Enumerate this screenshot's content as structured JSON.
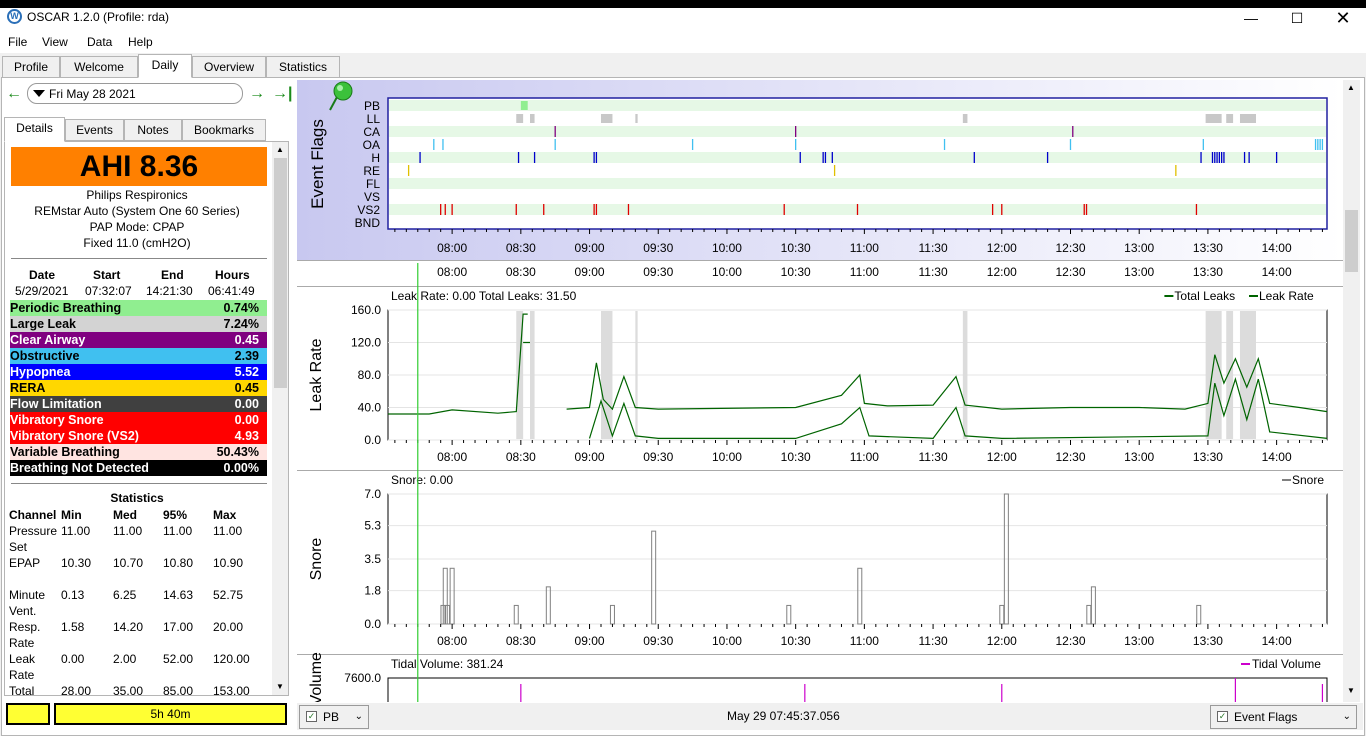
{
  "app": {
    "title": "OSCAR 1.2.0 (Profile: rda)",
    "icon": "oscar-logo-icon",
    "window_controls": [
      "minimize-icon",
      "maximize-icon",
      "close-icon"
    ]
  },
  "menu": [
    "File",
    "View",
    "Data",
    "Help"
  ],
  "main_tabs": [
    "Profile",
    "Welcome",
    "Daily",
    "Overview",
    "Statistics"
  ],
  "active_main_tab": "Daily",
  "nav": {
    "date": "Fri May 28 2021"
  },
  "side_tabs": [
    "Details",
    "Events",
    "Notes",
    "Bookmarks"
  ],
  "active_side_tab": "Details",
  "details": {
    "ahi": "AHI 8.36",
    "machine": [
      "Philips Respironics",
      "REMstar Auto (System One 60 Series)",
      "PAP Mode: CPAP",
      "Fixed 11.0 (cmH2O)"
    ],
    "session_headers": [
      "Date",
      "Start",
      "End",
      "Hours"
    ],
    "session_values": [
      "5/29/2021",
      "07:32:07",
      "14:21:30",
      "06:41:49"
    ],
    "events": [
      {
        "name": "Periodic Breathing",
        "value": "0.74%",
        "bg": "#90ee90",
        "fg": "#000000"
      },
      {
        "name": "Large Leak",
        "value": "7.24%",
        "bg": "#d3d3d3",
        "fg": "#000000"
      },
      {
        "name": "Clear Airway",
        "value": "0.45",
        "bg": "#800080",
        "fg": "#ffffff"
      },
      {
        "name": "Obstructive",
        "value": "2.39",
        "bg": "#40c0f0",
        "fg": "#000000"
      },
      {
        "name": "Hypopnea",
        "value": "5.52",
        "bg": "#0000ff",
        "fg": "#ffffff"
      },
      {
        "name": "RERA",
        "value": "0.45",
        "bg": "#ffd700",
        "fg": "#000000"
      },
      {
        "name": "Flow Limitation",
        "value": "0.00",
        "bg": "#404040",
        "fg": "#ffffff"
      },
      {
        "name": "Vibratory Snore",
        "value": "0.00",
        "bg": "#ff0000",
        "fg": "#ffffff"
      },
      {
        "name": "Vibratory Snore (VS2)",
        "value": "4.93",
        "bg": "#ff0000",
        "fg": "#ffffff"
      },
      {
        "name": "Variable Breathing",
        "value": "50.43%",
        "bg": "#ffe4e1",
        "fg": "#000000"
      },
      {
        "name": "Breathing Not Detected",
        "value": "0.00%",
        "bg": "#000000",
        "fg": "#ffffff"
      }
    ],
    "stats_title": "Statistics",
    "stats_headers": [
      "Channel",
      "Min",
      "Med",
      "95%",
      "Max"
    ],
    "stats_rows": [
      {
        "channel": [
          "Pressure",
          "Set"
        ],
        "values": [
          "11.00",
          "11.00",
          "11.00",
          "11.00"
        ]
      },
      {
        "channel": [
          "EPAP"
        ],
        "values": [
          "10.30",
          "10.70",
          "10.80",
          "10.90"
        ]
      },
      {
        "channel": [
          "Minute",
          "Vent."
        ],
        "values": [
          "0.13",
          "6.25",
          "14.63",
          "52.75"
        ]
      },
      {
        "channel": [
          "Resp.",
          "Rate"
        ],
        "values": [
          "1.58",
          "14.20",
          "17.00",
          "20.00"
        ]
      },
      {
        "channel": [
          "Leak",
          "Rate"
        ],
        "values": [
          "0.00",
          "2.00",
          "52.00",
          "120.00"
        ]
      },
      {
        "channel": [
          "Total",
          "Leaks"
        ],
        "values": [
          "28.00",
          "35.00",
          "85.00",
          "153.00"
        ]
      }
    ]
  },
  "bottom_left": {
    "duration": "5h 40m"
  },
  "time_ticks": [
    "08:00",
    "08:30",
    "09:00",
    "09:30",
    "10:00",
    "10:30",
    "11:00",
    "11:30",
    "12:00",
    "12:30",
    "13:00",
    "13:30",
    "14:00"
  ],
  "event_flags_chart": {
    "ylabel": "Event Flags",
    "icon": "pushpin-icon",
    "rows": [
      "PB",
      "LL",
      "CA",
      "OA",
      "H",
      "RE",
      "FL",
      "VS",
      "VS2",
      "BND"
    ],
    "colors": {
      "PB": "#90ee90",
      "LL": "#c8c8c8",
      "CA": "#800080",
      "OA": "#40c0f0",
      "H": "#0000cc",
      "RE": "#e0c000",
      "VS2": "#e00000"
    }
  },
  "chart_data": [
    {
      "type": "line",
      "title": "Leak Rate: 0.00 Total Leaks: 31.50",
      "ylabel": "Leak Rate",
      "legend": [
        "Total Leaks",
        "Leak Rate"
      ],
      "legend_position": "top-right",
      "ylim": [
        0,
        160
      ],
      "yticks": [
        "160.0",
        "120.0",
        "80.0",
        "40.0",
        "0.0"
      ],
      "x_range": [
        "07:32",
        "14:22"
      ],
      "color": "#006400",
      "series": [
        {
          "name": "Total Leaks",
          "x": [
            "07:32",
            "07:45",
            "07:50",
            "08:00",
            "08:20",
            "08:28",
            "08:31",
            "08:33",
            "08:41",
            "08:50",
            "09:00",
            "09:03",
            "09:06",
            "09:10",
            "09:15",
            "09:20",
            "09:30",
            "10:30",
            "10:50",
            "10:58",
            "11:00",
            "11:10",
            "11:30",
            "11:40",
            "11:44",
            "12:00",
            "12:30",
            "13:00",
            "13:20",
            "13:30",
            "13:33",
            "13:37",
            "13:42",
            "13:47",
            "13:52",
            "13:57",
            "14:10",
            "14:22"
          ],
          "y": [
            32,
            32,
            32,
            37,
            33,
            35,
            155,
            155,
            null,
            38,
            40,
            95,
            50,
            38,
            78,
            40,
            38,
            40,
            55,
            80,
            45,
            42,
            43,
            78,
            43,
            38,
            40,
            40,
            38,
            45,
            105,
            70,
            100,
            65,
            100,
            45,
            40,
            35
          ]
        },
        {
          "name": "Leak Rate",
          "x": [
            "07:32",
            "08:31",
            "08:34",
            "08:41",
            "09:00",
            "09:05",
            "09:10",
            "09:15",
            "09:20",
            "09:30",
            "10:30",
            "10:50",
            "10:58",
            "11:02",
            "11:30",
            "11:40",
            "11:44",
            "12:00",
            "13:30",
            "13:33",
            "13:37",
            "13:42",
            "13:47",
            "13:52",
            "13:57",
            "14:22"
          ],
          "y": [
            null,
            120,
            120,
            null,
            2,
            48,
            5,
            45,
            5,
            2,
            2,
            20,
            40,
            5,
            2,
            40,
            5,
            2,
            5,
            70,
            30,
            75,
            25,
            75,
            10,
            2
          ]
        }
      ]
    },
    {
      "type": "bar",
      "title": "Snore: 0.00",
      "ylabel": "Snore",
      "legend": [
        "Snore"
      ],
      "legend_position": "top-right",
      "ylim": [
        0,
        7
      ],
      "yticks": [
        "7.0",
        "5.3",
        "3.5",
        "1.8",
        "0.0"
      ],
      "color": "#808080",
      "series": [
        {
          "name": "Snore",
          "x": [
            "07:56",
            "07:57",
            "07:58",
            "08:00",
            "08:28",
            "08:42",
            "09:10",
            "09:28",
            "10:27",
            "10:58",
            "12:00",
            "12:02",
            "12:38",
            "12:40",
            "13:26"
          ],
          "y": [
            1,
            3,
            1,
            3,
            1,
            2,
            1,
            5,
            1,
            3,
            1,
            7,
            1,
            2,
            1
          ]
        }
      ]
    },
    {
      "type": "line",
      "title": "Tidal Volume: 381.24",
      "ylabel": "Tidal Volume",
      "legend": [
        "Tidal Volume"
      ],
      "legend_position": "top-right",
      "yticks": [
        "7600.0"
      ],
      "color": "#cc00cc"
    }
  ],
  "bottom_bar": {
    "left_combo": "PB",
    "timestamp": "May 29 07:45:37.056",
    "right_combo": "Event Flags"
  }
}
